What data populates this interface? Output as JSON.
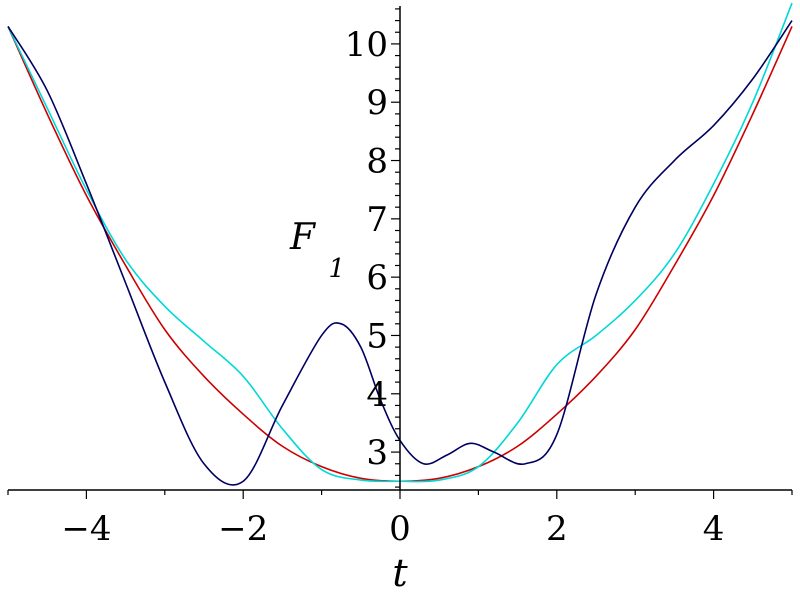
{
  "chart_data": {
    "type": "line",
    "title": "",
    "xlabel": "t",
    "ylabel": "F",
    "ylabel_subscript": "1",
    "xlim": [
      -5,
      5
    ],
    "ylim": [
      2.35,
      10.65
    ],
    "x_ticks": [
      -4,
      -2,
      0,
      2,
      4
    ],
    "x_tick_labels": [
      "−4",
      "−2",
      "0",
      "2",
      "4"
    ],
    "y_ticks": [
      3,
      4,
      5,
      6,
      7,
      8,
      9,
      10
    ],
    "y_tick_labels": [
      "3",
      "4",
      "5",
      "6",
      "7",
      "8",
      "9",
      "10"
    ],
    "grid": false,
    "legend": "none",
    "series": [
      {
        "color": "#cc0000",
        "x": [
          -5,
          -4.5,
          -4,
          -3.5,
          -3,
          -2.5,
          -2,
          -1.5,
          -1,
          -0.5,
          0,
          0.5,
          1,
          1.5,
          2,
          2.5,
          3,
          3.5,
          4,
          4.5,
          5
        ],
        "y": [
          10.3,
          8.8,
          7.4,
          6.2,
          5.1,
          4.3,
          3.65,
          3.1,
          2.75,
          2.55,
          2.5,
          2.55,
          2.75,
          3.1,
          3.65,
          4.3,
          5.1,
          6.2,
          7.4,
          8.8,
          10.3
        ]
      },
      {
        "color": "#00d8d8",
        "x": [
          -5,
          -4.5,
          -4,
          -3.5,
          -3,
          -2.5,
          -2,
          -1.5,
          -1,
          -0.5,
          0,
          0.5,
          1,
          1.5,
          2,
          2.5,
          3,
          3.5,
          4,
          4.5,
          5
        ],
        "y": [
          10.3,
          8.9,
          7.5,
          6.3,
          5.5,
          4.9,
          4.3,
          3.4,
          2.7,
          2.52,
          2.5,
          2.52,
          2.75,
          3.5,
          4.5,
          5.0,
          5.6,
          6.4,
          7.6,
          9.0,
          10.7
        ]
      },
      {
        "color": "#000060",
        "x": [
          -5,
          -4.5,
          -4,
          -3.5,
          -3,
          -2.5,
          -2,
          -1.5,
          -1,
          -0.75,
          -0.5,
          -0.25,
          0,
          0.3,
          0.6,
          0.9,
          1.2,
          1.6,
          2,
          2.5,
          3,
          3.5,
          4,
          4.5,
          5
        ],
        "y": [
          10.3,
          9.2,
          7.6,
          5.9,
          4.2,
          2.8,
          2.5,
          3.8,
          5.0,
          5.2,
          4.8,
          3.9,
          3.2,
          2.8,
          2.95,
          3.15,
          3.0,
          2.8,
          3.3,
          5.7,
          7.2,
          8.0,
          8.6,
          9.4,
          10.4
        ]
      }
    ]
  }
}
